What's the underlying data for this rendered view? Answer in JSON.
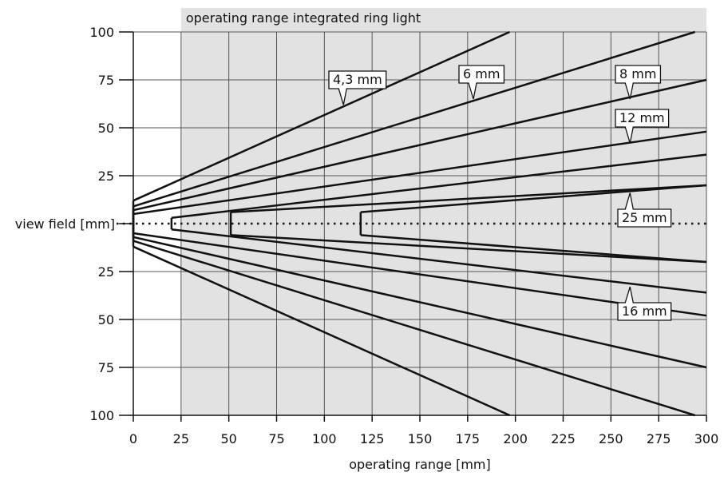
{
  "chart_data": {
    "type": "line",
    "title": "",
    "xlabel": "operating range [mm]",
    "ylabel": "view field [mm]",
    "xlim": [
      0,
      300
    ],
    "ylim": [
      -100,
      100
    ],
    "x_ticks": [
      0,
      25,
      50,
      75,
      100,
      125,
      150,
      175,
      200,
      225,
      250,
      275,
      300
    ],
    "y_ticks": [
      100,
      75,
      50,
      25,
      0,
      -25,
      -50,
      -75,
      -100
    ],
    "y_tick_labels": [
      "100",
      "75",
      "50",
      "25",
      "",
      "25",
      "50",
      "75",
      "100"
    ],
    "grid": true,
    "shaded_region": {
      "label": "operating range integrated ring light",
      "x_start": 25,
      "x_end": 300,
      "color": "#e2e2e2"
    },
    "line_color": "#111111",
    "series": [
      {
        "name": "4,3 mm",
        "start_x": 0,
        "start_half_width": 12,
        "end_x": 197,
        "end_half_width": 100,
        "label_x": 110,
        "label_y": 62,
        "label_dir": "up"
      },
      {
        "name": "6 mm",
        "start_x": 0,
        "start_half_width": 9,
        "end_x": 294,
        "end_half_width": 100,
        "label_x": 178,
        "label_y": 65,
        "label_dir": "up"
      },
      {
        "name": "8 mm",
        "start_x": 0,
        "start_half_width": 7,
        "end_x": 300,
        "end_half_width": 75,
        "label_x": 260,
        "label_y": 65,
        "label_dir": "up"
      },
      {
        "name": "12 mm",
        "start_x": 0,
        "start_half_width": 5,
        "end_x": 300,
        "end_half_width": 48,
        "label_x": 260,
        "label_y": 42,
        "label_dir": "up"
      },
      {
        "name": "16 mm",
        "start_x": 20,
        "start_half_width": 3,
        "end_x": 300,
        "end_half_width": 36,
        "label_x": 260,
        "label_y": -33,
        "label_dir": "down"
      },
      {
        "name": "25 mm",
        "start_x": 51,
        "start_half_width": 6,
        "end_x": 300,
        "end_half_width": 20,
        "label_x": 260,
        "label_y": 16,
        "label_dir": "down"
      },
      {
        "name": "",
        "start_x": 119,
        "start_half_width": 6,
        "end_x": 300,
        "end_half_width": 20,
        "label_dir": "none"
      }
    ]
  }
}
